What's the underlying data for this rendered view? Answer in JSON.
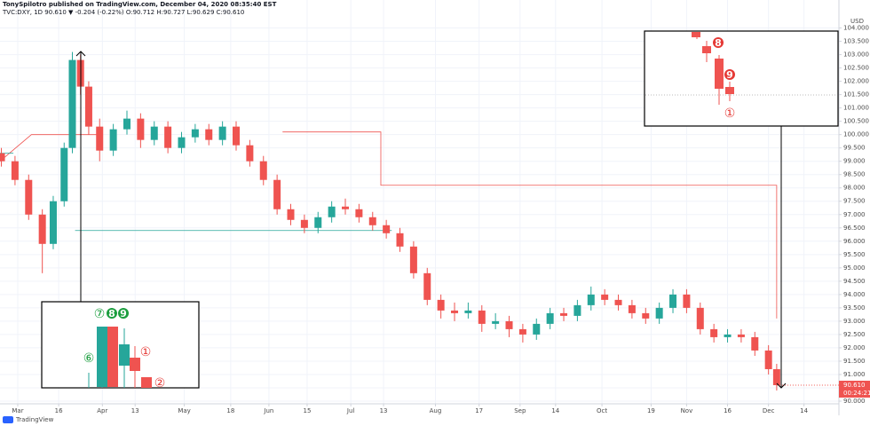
{
  "chart_data": {
    "type": "candlestick",
    "title": "TonySpilotro published on TradingView.com, December 04, 2020 08:35:40 EST",
    "subtitle": "TVC:DXY, 1D 90.610 ▼ -0.204 (-0.22%) O:90.712 H:90.727 L:90.629 C:90.610",
    "currency": "USD",
    "brand": "TradingView",
    "price_label": "90.610",
    "countdown": "00:24:21",
    "up_color": "#26a69a",
    "down_color": "#ef5350",
    "grid": true,
    "xlim": [
      -6.5,
      300.8
    ],
    "ylim": [
      89.9,
      105.05
    ],
    "xticks": [
      {
        "value": 0,
        "label": "Mar"
      },
      {
        "value": 15,
        "label": "16"
      },
      {
        "value": 31,
        "label": "Apr"
      },
      {
        "value": 43,
        "label": "13"
      },
      {
        "value": 61,
        "label": "May"
      },
      {
        "value": 78,
        "label": "18"
      },
      {
        "value": 92,
        "label": "Jun"
      },
      {
        "value": 106,
        "label": "15"
      },
      {
        "value": 122,
        "label": "Jul"
      },
      {
        "value": 134,
        "label": "13"
      },
      {
        "value": 153,
        "label": "Aug"
      },
      {
        "value": 169,
        "label": "17"
      },
      {
        "value": 184,
        "label": "Sep"
      },
      {
        "value": 197,
        "label": "14"
      },
      {
        "value": 214,
        "label": "Oct"
      },
      {
        "value": 232,
        "label": "19"
      },
      {
        "value": 245,
        "label": "Nov"
      },
      {
        "value": 260,
        "label": "16"
      },
      {
        "value": 275,
        "label": "Dec"
      },
      {
        "value": 288,
        "label": "14"
      }
    ],
    "yticks": [
      {
        "value": 90,
        "label": "90.000"
      },
      {
        "value": 90.5,
        "label": "90.500"
      },
      {
        "value": 91,
        "label": "91.000"
      },
      {
        "value": 91.5,
        "label": "91.500"
      },
      {
        "value": 92,
        "label": "92.000"
      },
      {
        "value": 92.5,
        "label": "92.500"
      },
      {
        "value": 93,
        "label": "93.000"
      },
      {
        "value": 93.5,
        "label": "93.500"
      },
      {
        "value": 94,
        "label": "94.000"
      },
      {
        "value": 94.5,
        "label": "94.500"
      },
      {
        "value": 95,
        "label": "95.000"
      },
      {
        "value": 95.5,
        "label": "95.500"
      },
      {
        "value": 96,
        "label": "96.000"
      },
      {
        "value": 96.5,
        "label": "96.500"
      },
      {
        "value": 97,
        "label": "97.000"
      },
      {
        "value": 97.5,
        "label": "97.500"
      },
      {
        "value": 98,
        "label": "98.000"
      },
      {
        "value": 98.5,
        "label": "98.500"
      },
      {
        "value": 99,
        "label": "99.000"
      },
      {
        "value": 99.5,
        "label": "99.500"
      },
      {
        "value": 100,
        "label": "100.000"
      },
      {
        "value": 100.5,
        "label": "100.500"
      },
      {
        "value": 101,
        "label": "101.000"
      },
      {
        "value": 101.5,
        "label": "101.500"
      },
      {
        "value": 102,
        "label": "102.000"
      },
      {
        "value": 102.5,
        "label": "102.500"
      },
      {
        "value": 103,
        "label": "103.000"
      },
      {
        "value": 103.5,
        "label": "103.500"
      },
      {
        "value": 104,
        "label": "104.000"
      }
    ],
    "x": [
      -6,
      -1,
      4,
      9,
      13,
      17,
      20,
      23,
      26,
      30,
      35,
      40,
      45,
      50,
      55,
      60,
      65,
      70,
      75,
      80,
      85,
      90,
      95,
      100,
      105,
      110,
      115,
      120,
      125,
      130,
      135,
      140,
      145,
      150,
      155,
      160,
      165,
      170,
      175,
      180,
      185,
      190,
      195,
      200,
      205,
      210,
      215,
      220,
      225,
      230,
      235,
      240,
      245,
      250,
      255,
      260,
      265,
      270,
      275,
      278
    ],
    "open": [
      99.3,
      99.0,
      98.3,
      97.0,
      95.9,
      97.5,
      99.5,
      102.8,
      101.8,
      100.3,
      99.4,
      100.2,
      100.6,
      99.8,
      100.3,
      99.5,
      99.9,
      100.2,
      99.8,
      100.3,
      99.6,
      99.0,
      98.3,
      97.2,
      96.8,
      96.5,
      96.9,
      97.3,
      97.2,
      96.9,
      96.6,
      96.3,
      95.8,
      94.8,
      93.8,
      93.4,
      93.3,
      93.4,
      92.9,
      93.0,
      92.7,
      92.5,
      92.9,
      93.3,
      93.2,
      93.6,
      94.0,
      93.8,
      93.6,
      93.3,
      93.1,
      93.5,
      94.0,
      93.5,
      92.7,
      92.4,
      92.5,
      92.4,
      91.9,
      91.2
    ],
    "high": [
      99.5,
      99.2,
      98.5,
      97.2,
      97.7,
      99.7,
      103.1,
      103.0,
      102.0,
      100.6,
      100.4,
      100.9,
      100.8,
      100.5,
      100.5,
      100.1,
      100.4,
      100.4,
      100.5,
      100.5,
      99.8,
      99.2,
      98.5,
      97.4,
      97.0,
      97.1,
      97.5,
      97.6,
      97.4,
      97.1,
      96.8,
      96.5,
      96.0,
      95.0,
      94.0,
      93.7,
      93.7,
      93.6,
      93.3,
      93.2,
      92.9,
      93.1,
      93.5,
      93.5,
      93.8,
      94.3,
      94.2,
      94.0,
      93.8,
      93.5,
      93.7,
      94.2,
      94.2,
      93.7,
      92.9,
      92.7,
      92.7,
      92.6,
      92.1,
      91.4
    ],
    "low": [
      98.8,
      98.1,
      96.8,
      94.8,
      95.7,
      97.3,
      99.3,
      101.5,
      100.0,
      99.0,
      99.2,
      100.0,
      99.5,
      99.6,
      99.3,
      99.3,
      99.7,
      99.6,
      99.6,
      99.4,
      98.8,
      98.1,
      97.0,
      96.6,
      96.3,
      96.3,
      96.7,
      97.0,
      96.7,
      96.4,
      96.1,
      95.6,
      94.6,
      93.6,
      93.1,
      93.0,
      93.1,
      92.6,
      92.7,
      92.4,
      92.2,
      92.3,
      92.7,
      93.0,
      93.0,
      93.4,
      93.6,
      93.4,
      93.1,
      92.9,
      92.9,
      93.3,
      93.3,
      92.5,
      92.2,
      92.2,
      92.2,
      91.7,
      91.0,
      90.4
    ],
    "close": [
      99.0,
      98.3,
      97.0,
      95.9,
      97.5,
      99.5,
      102.8,
      101.8,
      100.3,
      99.4,
      100.2,
      100.6,
      99.8,
      100.3,
      99.5,
      99.9,
      100.2,
      99.8,
      100.3,
      99.6,
      99.0,
      98.3,
      97.2,
      96.8,
      96.5,
      96.9,
      97.3,
      97.2,
      96.9,
      96.6,
      96.3,
      95.8,
      94.8,
      93.8,
      93.4,
      93.3,
      93.4,
      92.9,
      93.0,
      92.7,
      92.5,
      92.9,
      93.3,
      93.2,
      93.6,
      94.0,
      93.8,
      93.6,
      93.3,
      93.1,
      93.5,
      94.0,
      93.5,
      92.7,
      92.4,
      92.5,
      92.4,
      91.9,
      91.2,
      90.6
    ],
    "levels": [
      {
        "color": "#ef5350",
        "x": [
          -6.5,
          5,
          29
        ],
        "values": [
          99.0,
          100.0,
          100.0
        ]
      },
      {
        "color": "#ef5350",
        "x": [
          97,
          133,
          133,
          278,
          278
        ],
        "values": [
          100.1,
          100.1,
          98.1,
          98.1,
          93.1
        ]
      },
      {
        "color": "#26a69a",
        "x": [
          -6.5,
          -1.6
        ],
        "values": [
          99.3,
          99.3
        ]
      },
      {
        "color": "#26a69a",
        "x": [
          21,
          137
        ],
        "values": [
          96.4,
          96.4
        ]
      }
    ],
    "inset_left": {
      "labels": [
        "⑦",
        "8",
        "9",
        "⑥",
        "①",
        "②"
      ]
    },
    "inset_right": {
      "labels": [
        "8",
        "9",
        "①"
      ]
    }
  }
}
